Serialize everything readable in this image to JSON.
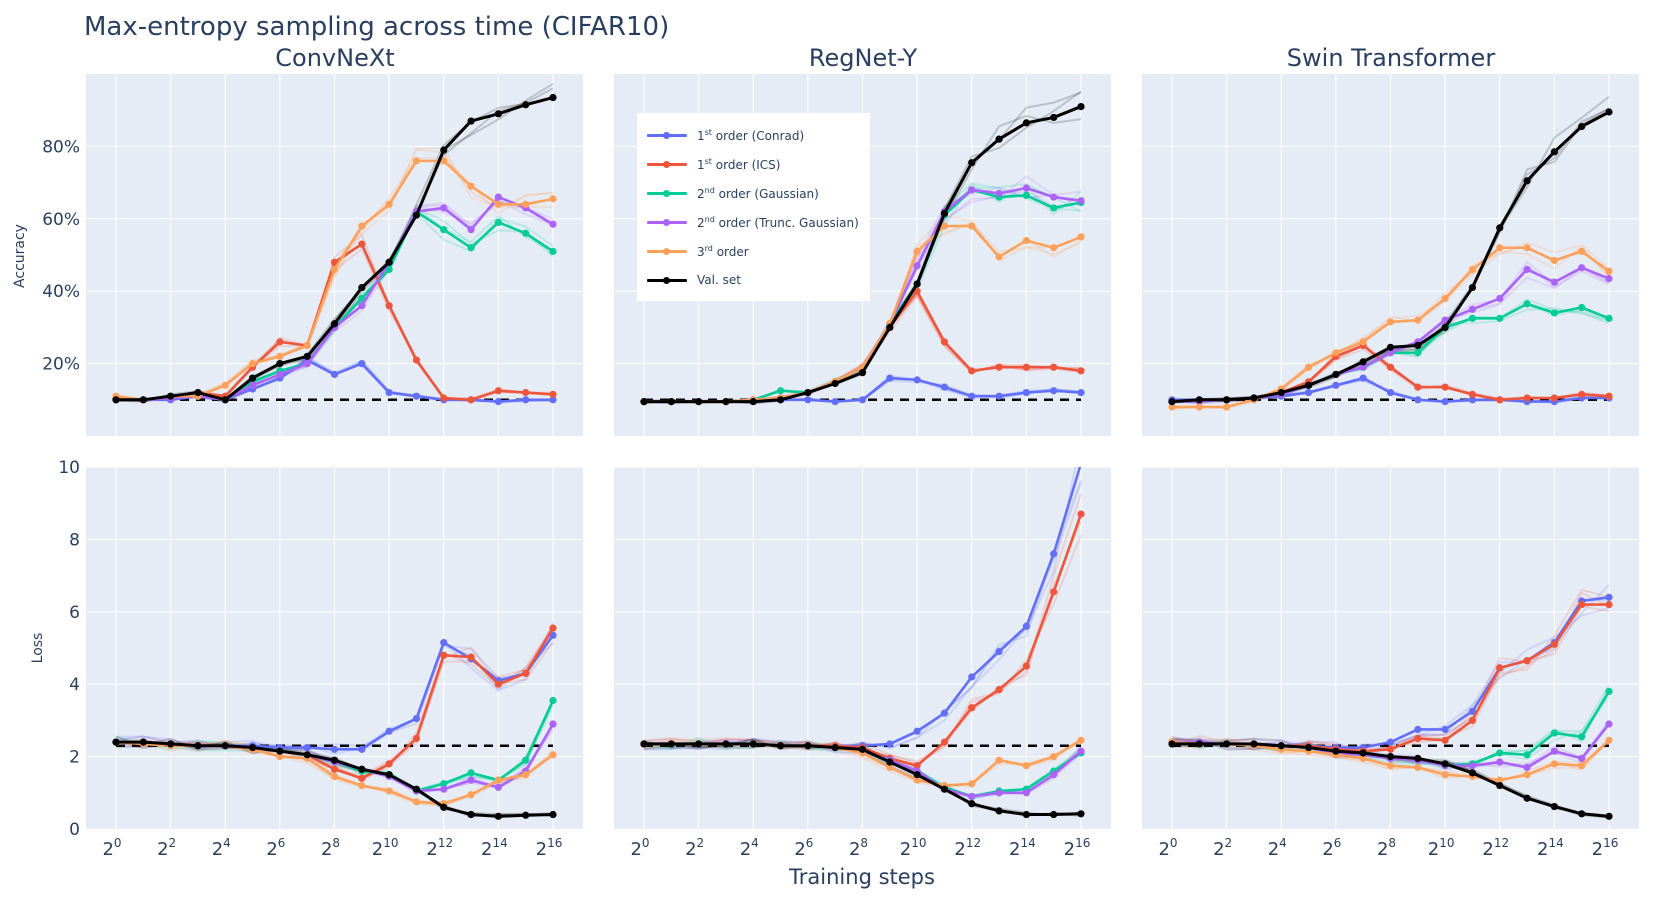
{
  "figure_title": "Max-entropy sampling across time (CIFAR10)",
  "x_axis_title": "Training steps",
  "y_axis_titles": {
    "accuracy": "Accuracy",
    "loss": "Loss"
  },
  "colors": {
    "conrad": "#636efa",
    "ics": "#ef553b",
    "gaussian": "#00cc96",
    "trunc_gaussian": "#ab63fa",
    "third_order": "#ffa15a",
    "val_set": "#000000",
    "plot_bg": "#e5ecf6",
    "grid": "#ffffff",
    "text": "#2a3f5f"
  },
  "legend": [
    {
      "key": "conrad",
      "order_num": "1",
      "order_sup": "st",
      "label": " order (Conrad)"
    },
    {
      "key": "ics",
      "order_num": "1",
      "order_sup": "st",
      "label": " order (ICS)"
    },
    {
      "key": "gaussian",
      "order_num": "2",
      "order_sup": "nd",
      "label": " order (Gaussian)"
    },
    {
      "key": "trunc_gaussian",
      "order_num": "2",
      "order_sup": "nd",
      "label": " order (Trunc. Gaussian)"
    },
    {
      "key": "third_order",
      "order_num": "3",
      "order_sup": "rd",
      "label": " order"
    },
    {
      "key": "val_set",
      "order_num": "",
      "order_sup": "",
      "label": "Val. set"
    }
  ],
  "chart_data": [
    {
      "type": "line",
      "model": "ConvNeXt",
      "metric": "Accuracy",
      "title": "ConvNeXt",
      "x_exponents": [
        0,
        1,
        2,
        3,
        4,
        5,
        6,
        7,
        8,
        9,
        10,
        11,
        12,
        13,
        14,
        15,
        16
      ],
      "x_ticks": [
        0,
        2,
        4,
        6,
        8,
        10,
        12,
        14,
        16
      ],
      "ylim": [
        0,
        100
      ],
      "y_ticks": [
        20,
        40,
        60,
        80
      ],
      "y_tick_labels": [
        "20%",
        "40%",
        "60%",
        "80%"
      ],
      "baseline": 10,
      "series": [
        {
          "key": "conrad",
          "values": [
            10,
            10,
            10,
            11,
            10,
            13,
            16,
            21,
            17,
            20,
            12,
            11,
            10,
            10,
            9.5,
            10,
            10
          ]
        },
        {
          "key": "ics",
          "values": [
            10.5,
            10,
            10.5,
            12,
            11,
            19,
            26,
            25,
            48,
            53,
            36,
            21,
            10.5,
            10,
            12.5,
            12,
            11.5
          ]
        },
        {
          "key": "gaussian",
          "values": [
            10,
            10,
            11,
            11,
            10,
            15,
            18,
            20,
            30,
            38,
            46,
            62,
            57,
            52,
            59,
            56,
            51
          ]
        },
        {
          "key": "trunc_gaussian",
          "values": [
            10,
            10,
            10.5,
            11,
            10,
            14,
            17,
            20,
            30,
            36,
            48,
            62,
            63,
            57,
            66,
            63,
            58.5
          ]
        },
        {
          "key": "third_order",
          "values": [
            11,
            10,
            11,
            11,
            14,
            20,
            22,
            25,
            46,
            58,
            64,
            76,
            76,
            69,
            64,
            64,
            65.5
          ]
        },
        {
          "key": "val_set",
          "values": [
            10,
            10,
            11,
            12,
            10,
            16,
            20,
            22,
            31,
            41,
            48,
            61,
            79,
            87,
            89,
            91.5,
            93.5
          ]
        }
      ]
    },
    {
      "type": "line",
      "model": "RegNet-Y",
      "metric": "Accuracy",
      "title": "RegNet-Y",
      "x_exponents": [
        0,
        1,
        2,
        3,
        4,
        5,
        6,
        7,
        8,
        9,
        10,
        11,
        12,
        13,
        14,
        15,
        16
      ],
      "x_ticks": [
        0,
        2,
        4,
        6,
        8,
        10,
        12,
        14,
        16
      ],
      "ylim": [
        0,
        100
      ],
      "y_ticks": [
        20,
        40,
        60,
        80
      ],
      "y_tick_labels": [
        "20%",
        "40%",
        "60%",
        "80%"
      ],
      "baseline": 10,
      "series": [
        {
          "key": "conrad",
          "values": [
            9.5,
            9.5,
            9.5,
            9.5,
            9.5,
            10,
            10,
            9.5,
            10,
            16,
            15.5,
            13.5,
            11,
            11,
            12,
            12.5,
            12
          ]
        },
        {
          "key": "ics",
          "values": [
            9.5,
            9.5,
            9.5,
            9.5,
            10,
            10.5,
            12,
            15,
            19,
            30,
            40,
            26,
            18,
            19,
            19,
            19,
            18
          ]
        },
        {
          "key": "gaussian",
          "values": [
            9.5,
            9.5,
            9.5,
            9.5,
            10,
            12.5,
            12,
            15,
            19,
            31,
            42,
            61,
            68,
            66,
            66.5,
            63,
            64.5
          ]
        },
        {
          "key": "trunc_gaussian",
          "values": [
            9.5,
            9.5,
            9.5,
            9.5,
            10,
            10.5,
            12,
            15,
            19,
            31,
            47,
            62,
            68,
            67,
            68.5,
            66,
            65
          ]
        },
        {
          "key": "third_order",
          "values": [
            9.5,
            9.5,
            9.5,
            9.5,
            10,
            10.5,
            12,
            15,
            19,
            31,
            51,
            58,
            58,
            49.5,
            54,
            52,
            55
          ]
        },
        {
          "key": "val_set",
          "values": [
            9.5,
            9.5,
            9.5,
            9.5,
            9.5,
            10,
            12,
            14.5,
            17.5,
            30,
            42,
            61.5,
            75.5,
            82,
            86.5,
            88,
            91
          ]
        }
      ]
    },
    {
      "type": "line",
      "model": "Swin Transformer",
      "metric": "Accuracy",
      "title": "Swin Transformer",
      "x_exponents": [
        0,
        1,
        2,
        3,
        4,
        5,
        6,
        7,
        8,
        9,
        10,
        11,
        12,
        13,
        14,
        15,
        16
      ],
      "x_ticks": [
        0,
        2,
        4,
        6,
        8,
        10,
        12,
        14,
        16
      ],
      "ylim": [
        0,
        100
      ],
      "y_ticks": [
        20,
        40,
        60,
        80
      ],
      "y_tick_labels": [
        "20%",
        "40%",
        "60%",
        "80%"
      ],
      "baseline": 10,
      "series": [
        {
          "key": "conrad",
          "values": [
            10,
            10,
            10,
            10.5,
            11,
            12,
            14,
            16,
            12,
            10,
            9.5,
            10,
            10,
            9.5,
            9.5,
            10.5,
            10.5
          ]
        },
        {
          "key": "ics",
          "values": [
            9.5,
            9.5,
            10,
            10.5,
            12,
            15,
            22,
            25,
            19,
            13.5,
            13.5,
            11.5,
            10,
            10.5,
            10.5,
            11.5,
            11
          ]
        },
        {
          "key": "gaussian",
          "values": [
            9.5,
            9.5,
            10,
            10.5,
            11.5,
            14,
            17,
            19,
            23,
            23,
            30,
            32.5,
            32.5,
            36.5,
            34,
            35.5,
            32.5
          ]
        },
        {
          "key": "trunc_gaussian",
          "values": [
            9.5,
            9.5,
            10,
            10.5,
            11.5,
            14,
            17,
            19,
            23,
            26,
            32,
            35,
            38,
            46,
            42.5,
            46.5,
            43.5
          ]
        },
        {
          "key": "third_order",
          "values": [
            8,
            8,
            8,
            10,
            13,
            19,
            23,
            26,
            31.5,
            32,
            38,
            46,
            52,
            52,
            48.5,
            51,
            45.5
          ]
        },
        {
          "key": "val_set",
          "values": [
            9.5,
            10,
            10,
            10.5,
            12,
            14,
            17,
            20.5,
            24.5,
            25,
            30,
            41,
            57.5,
            70.5,
            78.5,
            85.5,
            89.5
          ]
        }
      ]
    },
    {
      "type": "line",
      "model": "ConvNeXt",
      "metric": "Loss",
      "x_exponents": [
        0,
        1,
        2,
        3,
        4,
        5,
        6,
        7,
        8,
        9,
        10,
        11,
        12,
        13,
        14,
        15,
        16
      ],
      "x_ticks": [
        0,
        2,
        4,
        6,
        8,
        10,
        12,
        14,
        16
      ],
      "ylim": [
        0,
        10
      ],
      "y_ticks": [
        0,
        2,
        4,
        6,
        8,
        10
      ],
      "y_tick_labels": [
        "0",
        "2",
        "4",
        "6",
        "8",
        "10"
      ],
      "baseline": 2.3,
      "series": [
        {
          "key": "conrad",
          "values": [
            2.4,
            2.4,
            2.35,
            2.3,
            2.3,
            2.3,
            2.25,
            2.25,
            2.2,
            2.2,
            2.7,
            3.05,
            5.15,
            4.7,
            4.1,
            4.3,
            5.35
          ]
        },
        {
          "key": "ics",
          "values": [
            2.4,
            2.4,
            2.35,
            2.3,
            2.3,
            2.25,
            2.15,
            2.05,
            1.65,
            1.4,
            1.8,
            2.5,
            4.8,
            4.75,
            4.0,
            4.3,
            5.55
          ]
        },
        {
          "key": "gaussian",
          "values": [
            2.4,
            2.4,
            2.35,
            2.3,
            2.3,
            2.25,
            2.15,
            2.05,
            1.85,
            1.6,
            1.5,
            1.05,
            1.25,
            1.55,
            1.35,
            1.9,
            3.55
          ]
        },
        {
          "key": "trunc_gaussian",
          "values": [
            2.4,
            2.4,
            2.35,
            2.3,
            2.3,
            2.25,
            2.15,
            2.05,
            1.85,
            1.65,
            1.45,
            1.05,
            1.1,
            1.35,
            1.15,
            1.6,
            2.9
          ]
        },
        {
          "key": "third_order",
          "values": [
            2.4,
            2.35,
            2.3,
            2.3,
            2.3,
            2.2,
            2.0,
            1.95,
            1.45,
            1.2,
            1.05,
            0.75,
            0.7,
            0.95,
            1.35,
            1.5,
            2.05
          ]
        },
        {
          "key": "val_set",
          "values": [
            2.4,
            2.4,
            2.35,
            2.3,
            2.3,
            2.25,
            2.15,
            2.05,
            1.9,
            1.65,
            1.5,
            1.1,
            0.6,
            0.4,
            0.35,
            0.38,
            0.4
          ]
        }
      ]
    },
    {
      "type": "line",
      "model": "RegNet-Y",
      "metric": "Loss",
      "x_exponents": [
        0,
        1,
        2,
        3,
        4,
        5,
        6,
        7,
        8,
        9,
        10,
        11,
        12,
        13,
        14,
        15,
        16
      ],
      "x_ticks": [
        0,
        2,
        4,
        6,
        8,
        10,
        12,
        14,
        16
      ],
      "ylim": [
        0,
        10
      ],
      "y_ticks": [
        0,
        2,
        4,
        6,
        8,
        10
      ],
      "y_tick_labels": [
        "0",
        "2",
        "4",
        "6",
        "8",
        "10"
      ],
      "baseline": 2.3,
      "series": [
        {
          "key": "conrad",
          "values": [
            2.35,
            2.35,
            2.35,
            2.35,
            2.35,
            2.3,
            2.3,
            2.3,
            2.3,
            2.35,
            2.7,
            3.2,
            4.2,
            4.9,
            5.6,
            7.6,
            10.1
          ]
        },
        {
          "key": "ics",
          "values": [
            2.35,
            2.35,
            2.35,
            2.35,
            2.35,
            2.3,
            2.3,
            2.3,
            2.25,
            1.95,
            1.75,
            2.4,
            3.35,
            3.85,
            4.5,
            6.55,
            8.7
          ]
        },
        {
          "key": "gaussian",
          "values": [
            2.35,
            2.35,
            2.35,
            2.35,
            2.35,
            2.3,
            2.3,
            2.25,
            2.15,
            1.9,
            1.6,
            1.15,
            0.9,
            1.05,
            1.1,
            1.6,
            2.1
          ]
        },
        {
          "key": "trunc_gaussian",
          "values": [
            2.35,
            2.35,
            2.35,
            2.35,
            2.35,
            2.3,
            2.3,
            2.25,
            2.15,
            1.9,
            1.6,
            1.1,
            0.9,
            1.0,
            1.0,
            1.5,
            2.15
          ]
        },
        {
          "key": "third_order",
          "values": [
            2.35,
            2.35,
            2.35,
            2.35,
            2.35,
            2.3,
            2.3,
            2.25,
            2.1,
            1.7,
            1.35,
            1.2,
            1.25,
            1.9,
            1.75,
            2.0,
            2.45
          ]
        },
        {
          "key": "val_set",
          "values": [
            2.35,
            2.35,
            2.35,
            2.35,
            2.35,
            2.3,
            2.3,
            2.25,
            2.2,
            1.85,
            1.5,
            1.1,
            0.7,
            0.5,
            0.4,
            0.4,
            0.42
          ]
        }
      ]
    },
    {
      "type": "line",
      "model": "Swin Transformer",
      "metric": "Loss",
      "x_exponents": [
        0,
        1,
        2,
        3,
        4,
        5,
        6,
        7,
        8,
        9,
        10,
        11,
        12,
        13,
        14,
        15,
        16
      ],
      "x_ticks": [
        0,
        2,
        4,
        6,
        8,
        10,
        12,
        14,
        16
      ],
      "ylim": [
        0,
        10
      ],
      "y_ticks": [
        0,
        2,
        4,
        6,
        8,
        10
      ],
      "y_tick_labels": [
        "0",
        "2",
        "4",
        "6",
        "8",
        "10"
      ],
      "baseline": 2.3,
      "series": [
        {
          "key": "conrad",
          "values": [
            2.4,
            2.4,
            2.35,
            2.35,
            2.3,
            2.3,
            2.25,
            2.25,
            2.4,
            2.75,
            2.75,
            3.25,
            4.45,
            4.65,
            5.15,
            6.3,
            6.4
          ]
        },
        {
          "key": "ics",
          "values": [
            2.4,
            2.4,
            2.35,
            2.35,
            2.3,
            2.3,
            2.2,
            2.15,
            2.2,
            2.5,
            2.45,
            3.0,
            4.45,
            4.65,
            5.1,
            6.2,
            6.2
          ]
        },
        {
          "key": "gaussian",
          "values": [
            2.4,
            2.4,
            2.35,
            2.35,
            2.3,
            2.25,
            2.1,
            2.05,
            1.95,
            1.9,
            1.75,
            1.8,
            2.1,
            2.05,
            2.65,
            2.55,
            3.8
          ]
        },
        {
          "key": "trunc_gaussian",
          "values": [
            2.4,
            2.4,
            2.35,
            2.35,
            2.3,
            2.25,
            2.1,
            2.05,
            1.95,
            1.9,
            1.75,
            1.75,
            1.85,
            1.7,
            2.15,
            1.95,
            2.9
          ]
        },
        {
          "key": "third_order",
          "values": [
            2.4,
            2.35,
            2.35,
            2.3,
            2.2,
            2.15,
            2.05,
            1.95,
            1.75,
            1.7,
            1.5,
            1.45,
            1.35,
            1.5,
            1.8,
            1.75,
            2.45
          ]
        },
        {
          "key": "val_set",
          "values": [
            2.35,
            2.35,
            2.35,
            2.35,
            2.3,
            2.25,
            2.15,
            2.1,
            2.0,
            1.95,
            1.8,
            1.55,
            1.2,
            0.85,
            0.62,
            0.42,
            0.35
          ]
        }
      ]
    }
  ]
}
